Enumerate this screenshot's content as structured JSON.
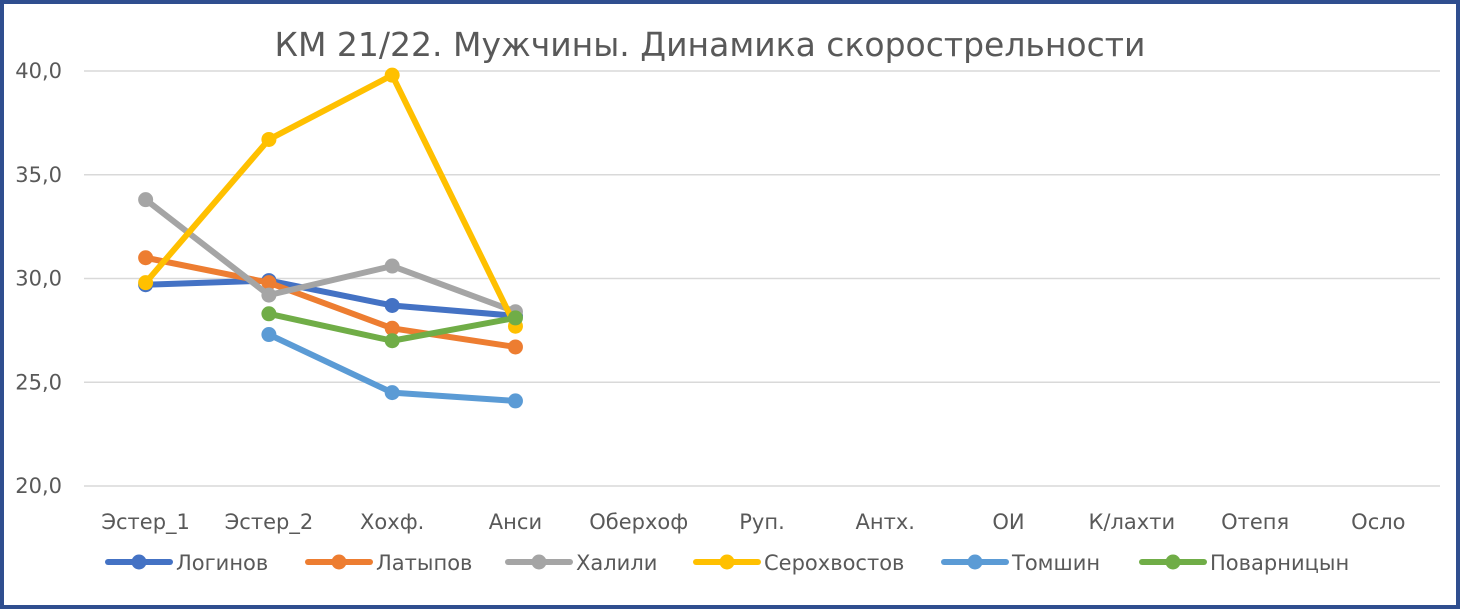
{
  "chart_data": {
    "type": "line",
    "title": "КМ 21/22. Мужчины. Динамика скорострельности",
    "xlabel": "",
    "ylabel": "",
    "categories": [
      "Эстер_1",
      "Эстер_2",
      "Хохф.",
      "Анси",
      "Оберхоф",
      "Руп.",
      "Антх.",
      "ОИ",
      "К/лахти",
      "Отепя",
      "Осло"
    ],
    "ylim": [
      20,
      40
    ],
    "yticks": [
      20,
      25,
      30,
      35,
      40
    ],
    "ytick_labels": [
      "20,0",
      "25,0",
      "30,0",
      "35,0",
      "40,0"
    ],
    "grid": true,
    "legend_position": "bottom",
    "series": [
      {
        "name": "Логинов",
        "color": "#4472c4",
        "values": [
          29.7,
          29.9,
          28.7,
          28.2,
          null,
          null,
          null,
          null,
          null,
          null,
          null
        ]
      },
      {
        "name": "Латыпов",
        "color": "#ed7d31",
        "values": [
          31.0,
          29.8,
          27.6,
          26.7,
          null,
          null,
          null,
          null,
          null,
          null,
          null
        ]
      },
      {
        "name": "Халили",
        "color": "#a5a5a5",
        "values": [
          33.8,
          29.2,
          30.6,
          28.4,
          null,
          null,
          null,
          null,
          null,
          null,
          null
        ]
      },
      {
        "name": "Серохвостов",
        "color": "#ffc000",
        "values": [
          29.8,
          36.7,
          39.8,
          27.7,
          null,
          null,
          null,
          null,
          null,
          null,
          null
        ]
      },
      {
        "name": "Томшин",
        "color": "#5b9bd5",
        "values": [
          null,
          27.3,
          24.5,
          24.1,
          null,
          null,
          null,
          null,
          null,
          null,
          null
        ]
      },
      {
        "name": "Поварницын",
        "color": "#70ad47",
        "values": [
          null,
          28.3,
          27.0,
          28.1,
          null,
          null,
          null,
          null,
          null,
          null,
          null
        ]
      }
    ]
  }
}
